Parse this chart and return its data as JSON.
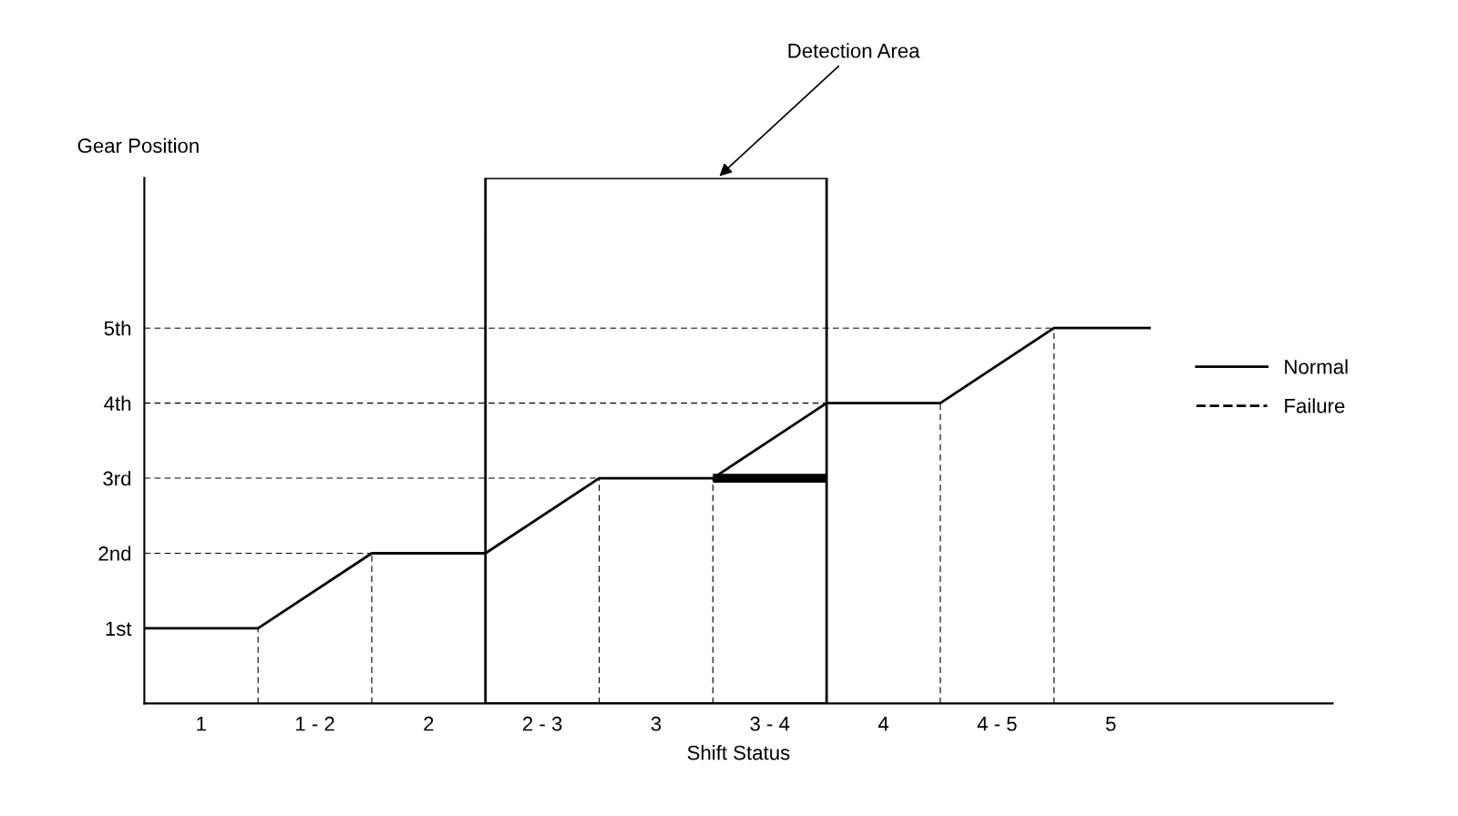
{
  "chart_data": {
    "type": "line",
    "xlabel": "Shift Status",
    "ylabel": "Gear Position",
    "xlim": [
      0.75,
      5.975
    ],
    "ylim": [
      0,
      7
    ],
    "xticks": [
      1,
      {
        "value": 1.5,
        "label": "1 - 2"
      },
      2,
      {
        "value": 2.5,
        "label": "2 - 3"
      },
      3,
      {
        "value": 3.5,
        "label": "3 - 4"
      },
      4,
      {
        "value": 4.5,
        "label": "4 - 5"
      },
      5
    ],
    "yticks": [
      {
        "value": 1,
        "label": "1st"
      },
      {
        "value": 2,
        "label": "2nd"
      },
      {
        "value": 3,
        "label": "3rd"
      },
      {
        "value": 4,
        "label": "4th"
      },
      {
        "value": 5,
        "label": "5th"
      }
    ],
    "series": [
      {
        "name": "Normal",
        "color": "#000000",
        "line_style": "solid",
        "x": [
          0.75,
          1.25,
          1.75,
          2.25,
          2.75,
          3.25,
          3.75,
          4.25,
          4.75,
          5.17
        ],
        "values": [
          1,
          1,
          2,
          2,
          3,
          3,
          4,
          4,
          5,
          5
        ]
      },
      {
        "name": "Failure",
        "color": "#000000",
        "line_style": "dashed",
        "x": [
          3.25,
          3.75
        ],
        "values": [
          3,
          3
        ]
      }
    ],
    "ref_lines": [
      {
        "axis": "y",
        "value": 2,
        "line_style": "dashed"
      },
      {
        "axis": "y",
        "value": 3,
        "line_style": "dashed"
      },
      {
        "axis": "y",
        "value": 4,
        "line_style": "dashed"
      },
      {
        "axis": "y",
        "value": 5,
        "line_style": "dashed"
      },
      {
        "axis": "x",
        "value": 1.25,
        "line_style": "dashed"
      },
      {
        "axis": "x",
        "value": 1.75,
        "line_style": "dashed"
      },
      {
        "axis": "x",
        "value": 2.75,
        "line_style": "dashed"
      },
      {
        "axis": "x",
        "value": 3.25,
        "line_style": "dashed"
      },
      {
        "axis": "x",
        "value": 4.25,
        "line_style": "dashed"
      },
      {
        "axis": "x",
        "value": 4.75,
        "line_style": "dashed"
      }
    ],
    "bands": [
      {
        "axis": "x",
        "from": 2.25,
        "to": 3.75,
        "label": "Detection Area",
        "color": "#ffffff"
      }
    ],
    "legend": "right",
    "grid": false,
    "marker": "none"
  }
}
